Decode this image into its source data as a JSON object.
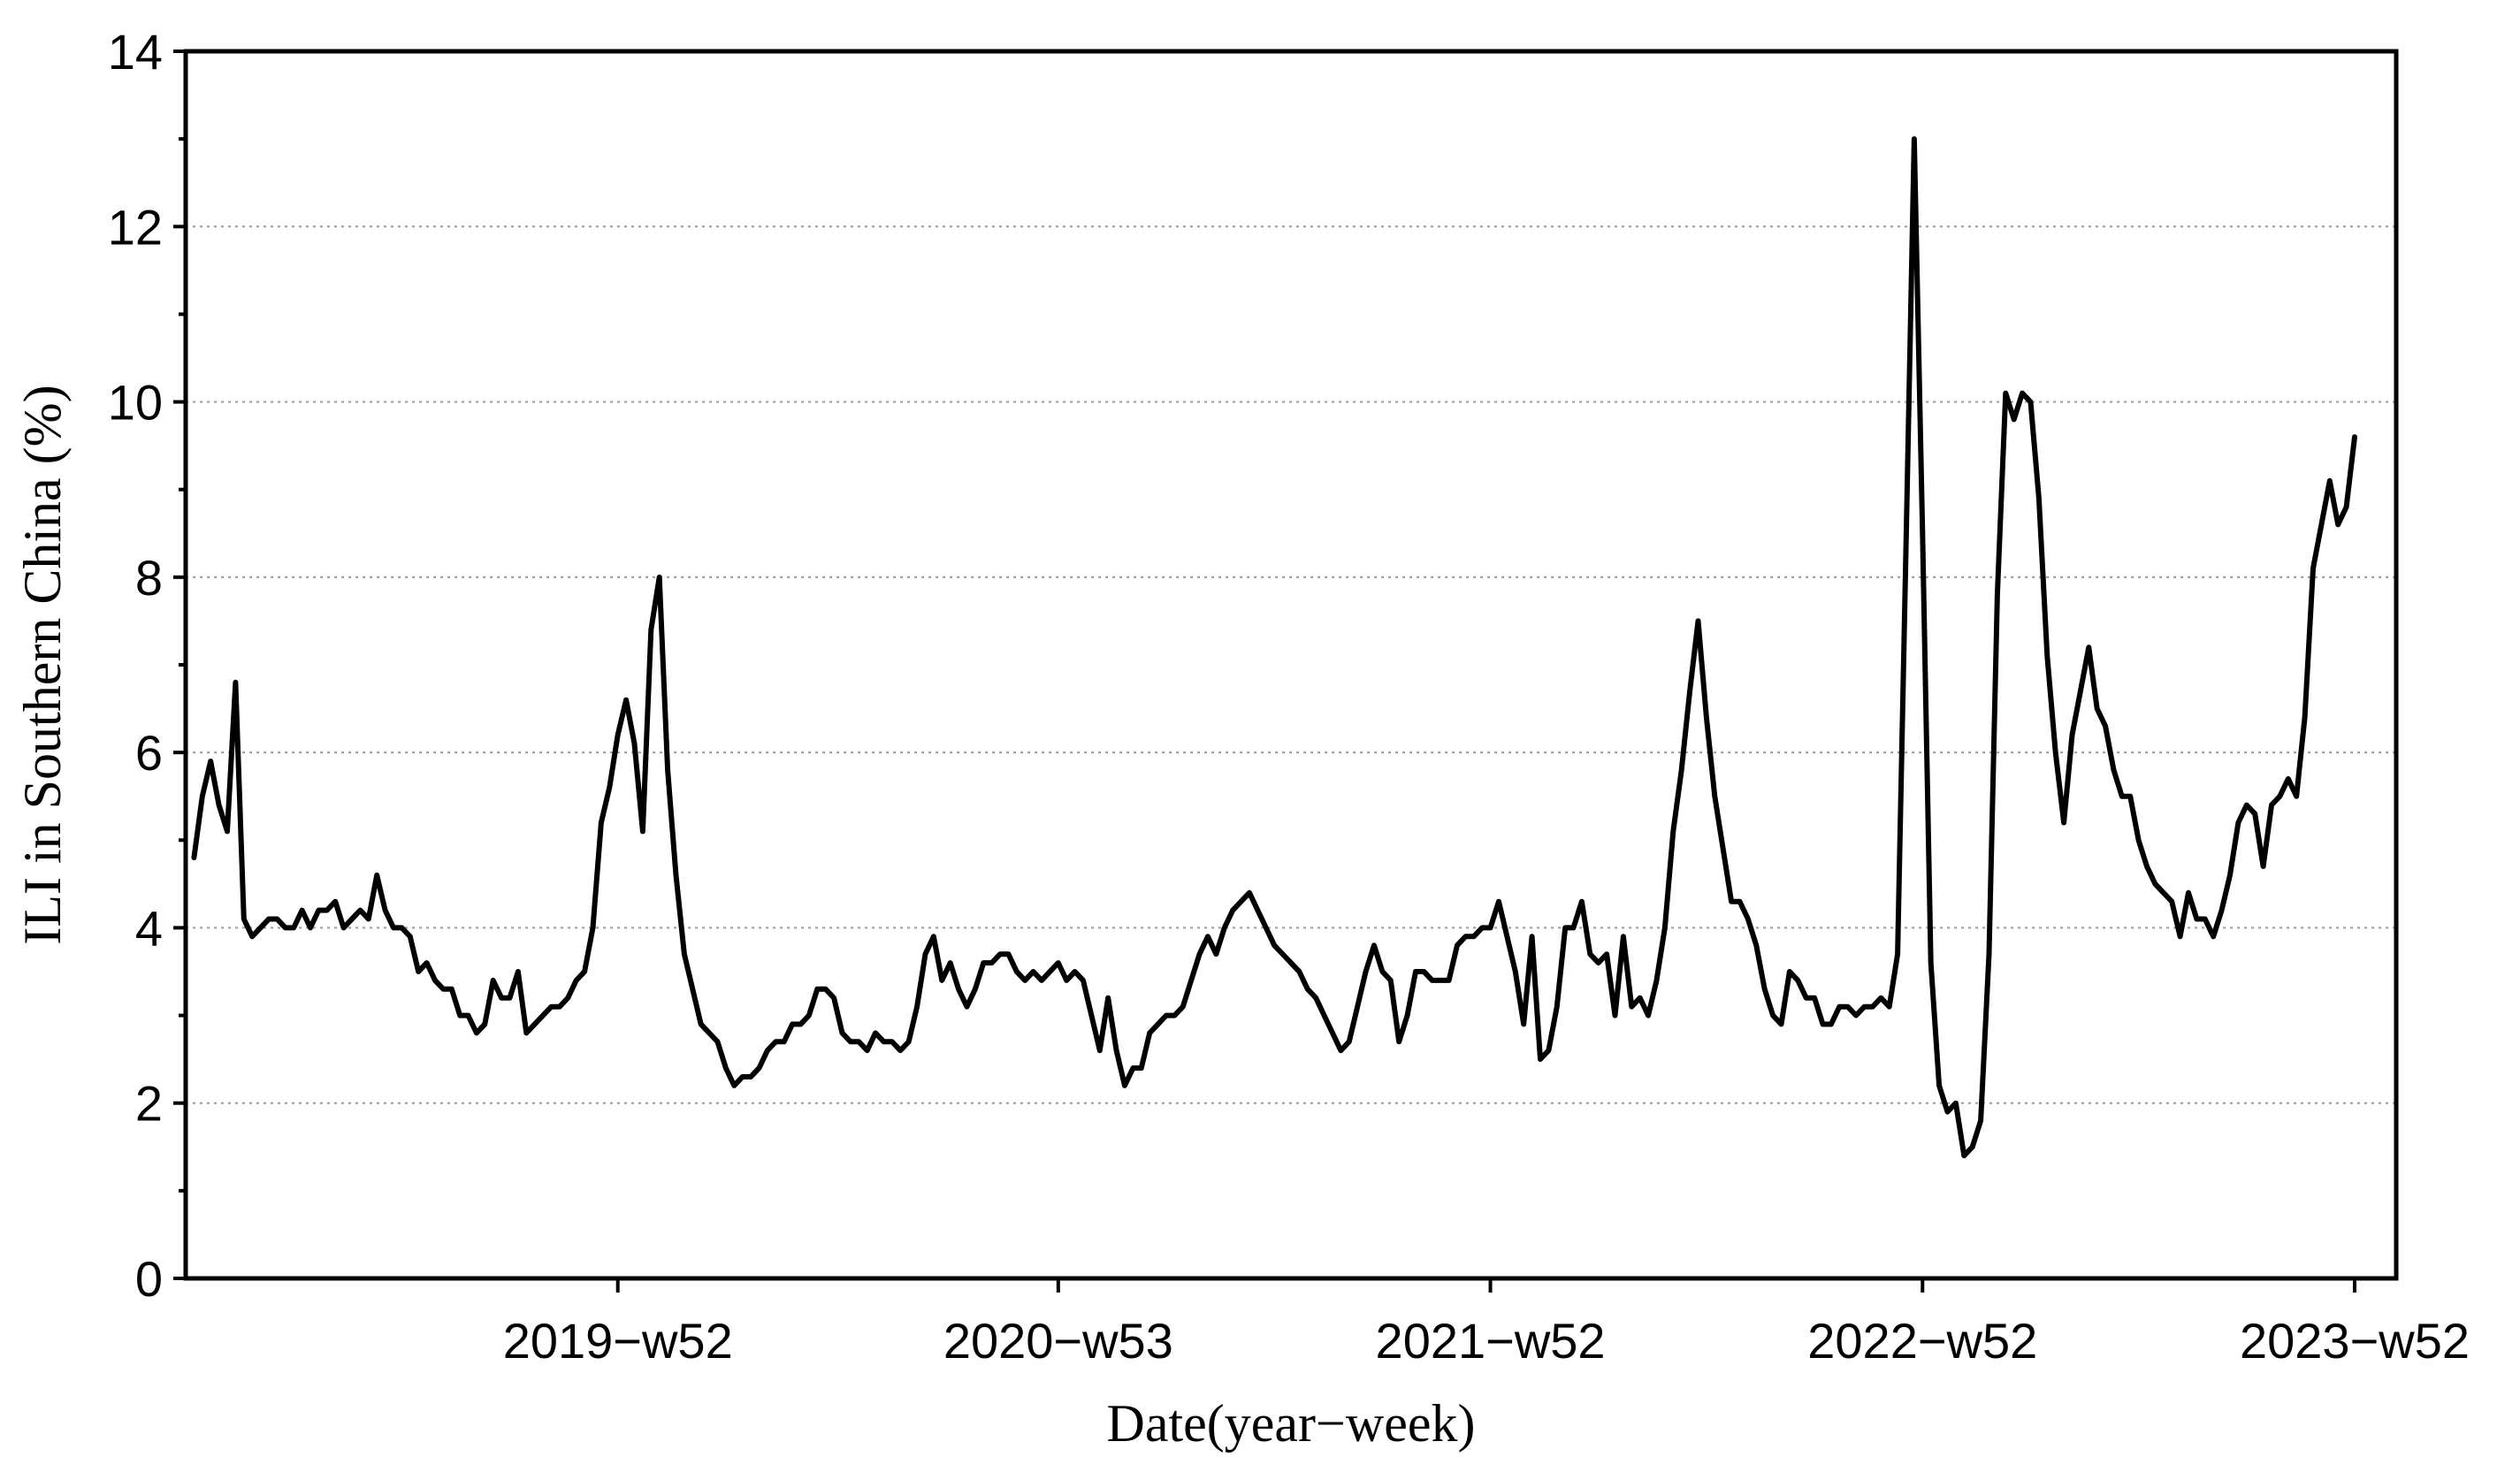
{
  "chart_data": {
    "type": "line",
    "title": "",
    "xlabel": "Date(year−week)",
    "ylabel": "ILI in Southern China (%)",
    "ylim": [
      0,
      14
    ],
    "xlim": [
      0,
      266
    ],
    "y_ticks": [
      0,
      2,
      4,
      6,
      8,
      10,
      12,
      14
    ],
    "y_tick_labels": [
      "0",
      "2",
      "4",
      "6",
      "8",
      "10",
      "12",
      "14"
    ],
    "x_ticks": [
      52,
      105,
      157,
      209,
      261
    ],
    "x_tick_labels": [
      "2019−w52",
      "2020−w53",
      "2021−w52",
      "2022−w52",
      "2023−w52"
    ],
    "grid": "horizontal dotted",
    "legend": "none",
    "line_color": "#000000",
    "series": [
      {
        "x": [
          1,
          2,
          3,
          4,
          5,
          6,
          7,
          8,
          9,
          10,
          11,
          12,
          13,
          14,
          15,
          16,
          17,
          18,
          19,
          20,
          21,
          22,
          23,
          24,
          25,
          26,
          27,
          28,
          29,
          30,
          31,
          32,
          33,
          34,
          35,
          36,
          37,
          38,
          39,
          40,
          41,
          42,
          43,
          44,
          45,
          46,
          47,
          48,
          49,
          50,
          51,
          52,
          53,
          54,
          55,
          56,
          57,
          58,
          59,
          60,
          61,
          62,
          63,
          64,
          65,
          66,
          67,
          68,
          69,
          70,
          71,
          72,
          73,
          74,
          75,
          76,
          77,
          78,
          79,
          80,
          81,
          82,
          83,
          84,
          85,
          86,
          87,
          88,
          89,
          90,
          91,
          92,
          93,
          94,
          95,
          96,
          97,
          98,
          99,
          100,
          101,
          102,
          103,
          104,
          105,
          106,
          107,
          108,
          109,
          110,
          111,
          112,
          113,
          114,
          115,
          116,
          117,
          118,
          119,
          120,
          121,
          122,
          123,
          124,
          125,
          126,
          127,
          128,
          129,
          130,
          131,
          132,
          133,
          134,
          135,
          136,
          137,
          138,
          139,
          140,
          141,
          142,
          143,
          144,
          145,
          146,
          147,
          148,
          149,
          150,
          151,
          152,
          153,
          154,
          155,
          156,
          157,
          158,
          159,
          160,
          161,
          162,
          163,
          164,
          165,
          166,
          167,
          168,
          169,
          170,
          171,
          172,
          173,
          174,
          175,
          176,
          177,
          178,
          179,
          180,
          181,
          182,
          183,
          184,
          185,
          186,
          187,
          188,
          189,
          190,
          191,
          192,
          193,
          194,
          195,
          196,
          197,
          198,
          199,
          200,
          201,
          202,
          203,
          204,
          205,
          206,
          207,
          208,
          209,
          210,
          211,
          212,
          213,
          214,
          215,
          216,
          217,
          218,
          219,
          220,
          221,
          222,
          223,
          224,
          225,
          226,
          227,
          228,
          229,
          230,
          231,
          232,
          233,
          234,
          235,
          236,
          237,
          238,
          239,
          240,
          241,
          242,
          243,
          244,
          245,
          246,
          247,
          248,
          249,
          250,
          251,
          252,
          253,
          254,
          255,
          256,
          257,
          258,
          259,
          260,
          261
        ],
        "values": [
          4.8,
          5.5,
          5.9,
          5.4,
          5.1,
          6.8,
          4.1,
          3.9,
          4.0,
          4.1,
          4.1,
          4.0,
          4.0,
          4.2,
          4.0,
          4.2,
          4.2,
          4.3,
          4.0,
          4.1,
          4.2,
          4.1,
          4.6,
          4.2,
          4.0,
          4.0,
          3.9,
          3.5,
          3.6,
          3.4,
          3.3,
          3.3,
          3.0,
          3.0,
          2.8,
          2.9,
          3.4,
          3.2,
          3.2,
          3.5,
          2.8,
          2.9,
          3.0,
          3.1,
          3.1,
          3.2,
          3.4,
          3.5,
          4.0,
          5.2,
          5.6,
          6.2,
          6.6,
          6.1,
          5.1,
          7.4,
          8.0,
          5.8,
          4.6,
          3.7,
          3.3,
          2.9,
          2.8,
          2.7,
          2.4,
          2.2,
          2.3,
          2.3,
          2.4,
          2.6,
          2.7,
          2.7,
          2.9,
          2.9,
          3.0,
          3.3,
          3.3,
          3.2,
          2.8,
          2.7,
          2.7,
          2.6,
          2.8,
          2.7,
          2.7,
          2.6,
          2.7,
          3.1,
          3.7,
          3.9,
          3.4,
          3.6,
          3.3,
          3.1,
          3.3,
          3.6,
          3.6,
          3.7,
          3.7,
          3.5,
          3.4,
          3.5,
          3.4,
          3.5,
          3.6,
          3.4,
          3.5,
          3.4,
          3.0,
          2.6,
          3.2,
          2.6,
          2.2,
          2.4,
          2.4,
          2.8,
          2.9,
          3.0,
          3.0,
          3.1,
          3.4,
          3.7,
          3.9,
          3.7,
          4.0,
          4.2,
          4.3,
          4.4,
          4.2,
          4.0,
          3.8,
          3.7,
          3.6,
          3.5,
          3.3,
          3.2,
          3.0,
          2.8,
          2.6,
          2.7,
          3.1,
          3.5,
          3.8,
          3.5,
          3.4,
          2.7,
          3.0,
          3.5,
          3.5,
          3.4,
          3.4,
          3.4,
          3.8,
          3.9,
          3.9,
          4.0,
          4.0,
          4.3,
          3.9,
          3.5,
          2.9,
          3.9,
          2.5,
          2.6,
          3.1,
          4.0,
          4.0,
          4.3,
          3.7,
          3.6,
          3.7,
          3.0,
          3.9,
          3.1,
          3.2,
          3.0,
          3.4,
          4.0,
          5.1,
          5.8,
          6.7,
          7.5,
          6.4,
          5.5,
          4.9,
          4.3,
          4.3,
          4.1,
          3.8,
          3.3,
          3.0,
          2.9,
          3.5,
          3.4,
          3.2,
          3.2,
          2.9,
          2.9,
          3.1,
          3.1,
          3.0,
          3.1,
          3.1,
          3.2,
          3.1,
          3.7,
          8.3,
          13.0,
          8.5,
          3.6,
          2.2,
          1.9,
          2.0,
          1.4,
          1.5,
          1.8,
          3.7,
          7.8,
          10.1,
          9.8,
          10.1,
          10.0,
          8.9,
          7.1,
          6.0,
          5.2,
          6.2,
          6.7,
          7.2,
          6.5,
          6.3,
          5.8,
          5.5,
          5.5,
          5.0,
          4.7,
          4.5,
          4.4,
          4.3,
          3.9,
          4.4,
          4.1,
          4.1,
          3.9,
          4.2,
          4.6,
          5.2,
          5.4,
          5.3,
          4.7,
          5.4,
          5.5,
          5.7,
          5.5,
          6.4,
          8.1,
          8.6,
          9.1,
          8.6,
          8.8,
          9.6
        ]
      }
    ]
  }
}
